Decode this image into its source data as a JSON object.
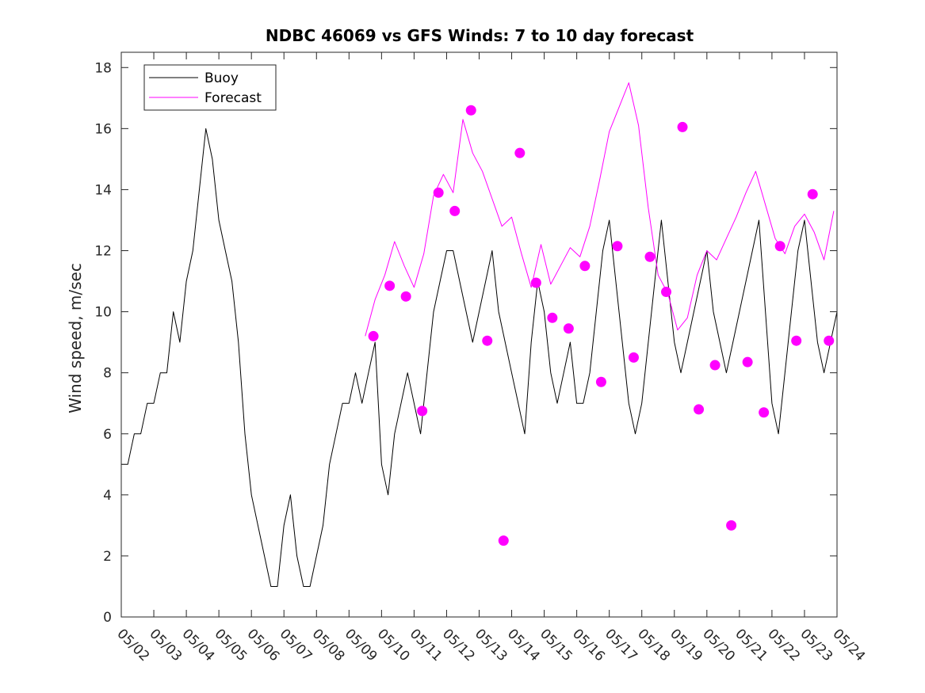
{
  "chart_data": {
    "type": "line",
    "title": "NDBC 46069 vs GFS Winds: 7 to 10 day forecast",
    "xlabel": "",
    "ylabel": "Wind speed, m/sec",
    "xlim": [
      0,
      22
    ],
    "ylim": [
      0,
      18.5
    ],
    "x_tick_labels": [
      "05/02",
      "05/03",
      "05/04",
      "05/05",
      "05/06",
      "05/07",
      "05/08",
      "05/09",
      "05/10",
      "05/11",
      "05/12",
      "05/13",
      "05/14",
      "05/15",
      "05/16",
      "05/17",
      "05/18",
      "05/19",
      "05/20",
      "05/21",
      "05/22",
      "05/23",
      "05/24"
    ],
    "y_ticks": [
      0,
      2,
      4,
      6,
      8,
      10,
      12,
      14,
      16,
      18
    ],
    "grid": false,
    "legend_position": "top-left",
    "colors": {
      "buoy": "#000000",
      "forecast": "#ff00ff",
      "axes": "#262626"
    },
    "series": [
      {
        "name": "Buoy",
        "style": "line",
        "color": "#000000",
        "x": [
          0,
          0.2,
          0.4,
          0.6,
          0.8,
          1.0,
          1.2,
          1.4,
          1.6,
          1.8,
          2.0,
          2.2,
          2.4,
          2.6,
          2.8,
          3.0,
          3.2,
          3.4,
          3.6,
          3.8,
          4.0,
          4.2,
          4.4,
          4.6,
          4.8,
          5.0,
          5.2,
          5.4,
          5.6,
          5.8,
          6.0,
          6.2,
          6.4,
          6.6,
          6.8,
          7.0,
          7.2,
          7.4,
          7.6,
          7.8,
          8.0,
          8.2,
          8.4,
          8.6,
          8.8,
          9.0,
          9.2,
          9.4,
          9.6,
          9.8,
          10.0,
          10.2,
          10.4,
          10.6,
          10.8,
          11.0,
          11.2,
          11.4,
          11.6,
          11.8,
          12.0,
          12.2,
          12.4,
          12.6,
          12.8,
          13.0,
          13.2,
          13.4,
          13.6,
          13.8,
          14.0,
          14.2,
          14.4,
          14.6,
          14.8,
          15.0,
          15.2,
          15.4,
          15.6,
          15.8,
          16.0,
          16.2,
          16.4,
          16.6,
          16.8,
          17.0,
          17.2,
          17.4,
          17.6,
          17.8,
          18.0,
          18.2,
          18.4,
          18.6,
          18.8,
          19.0,
          19.2,
          19.4,
          19.6,
          19.8,
          20.0,
          20.2,
          20.4,
          20.6,
          20.8,
          21.0,
          21.2,
          21.4,
          21.6,
          21.8,
          22.0
        ],
        "y": [
          5,
          5,
          6,
          6,
          7,
          7,
          8,
          8,
          10,
          9,
          11,
          12,
          14,
          16,
          15,
          13,
          12,
          11,
          9,
          6,
          4,
          3,
          2,
          1,
          1,
          3,
          4,
          2,
          1,
          1,
          2,
          3,
          5,
          6,
          7,
          7,
          8,
          7,
          8,
          9,
          5,
          4,
          6,
          7,
          8,
          7,
          6,
          8,
          10,
          11,
          12,
          12,
          11,
          10,
          9,
          10,
          11,
          12,
          10,
          9,
          8,
          7,
          6,
          9,
          11,
          10,
          8,
          7,
          8,
          9,
          7,
          7,
          8,
          10,
          12,
          13,
          11,
          9,
          7,
          6,
          7,
          9,
          11,
          13,
          11,
          9,
          8,
          9,
          10,
          11,
          12,
          10,
          9,
          8,
          9,
          10,
          11,
          12,
          13,
          10,
          7,
          6,
          8,
          10,
          12,
          13,
          11,
          9,
          8,
          9,
          10
        ]
      },
      {
        "name": "Forecast",
        "style": "line",
        "color": "#ff00ff",
        "x": [
          7.5,
          7.8,
          8.1,
          8.4,
          8.7,
          9.0,
          9.3,
          9.6,
          9.9,
          10.2,
          10.5,
          10.8,
          11.1,
          11.4,
          11.7,
          12.0,
          12.3,
          12.6,
          12.9,
          13.2,
          13.5,
          13.8,
          14.1,
          14.4,
          14.7,
          15.0,
          15.3,
          15.6,
          15.9,
          16.2,
          16.5,
          16.8,
          17.1,
          17.4,
          17.7,
          18.0,
          18.3,
          18.6,
          18.9,
          19.2,
          19.5,
          19.8,
          20.1,
          20.4,
          20.7,
          21.0,
          21.3,
          21.6,
          21.9
        ],
        "y": [
          9.2,
          10.4,
          11.2,
          12.3,
          11.5,
          10.8,
          11.9,
          13.8,
          14.5,
          13.9,
          16.3,
          15.2,
          14.6,
          13.7,
          12.8,
          13.1,
          11.9,
          10.8,
          12.2,
          10.9,
          11.5,
          12.1,
          11.8,
          12.8,
          14.3,
          15.9,
          16.7,
          17.5,
          16.1,
          13.4,
          11.2,
          10.6,
          9.4,
          9.8,
          11.2,
          12.0,
          11.7,
          12.4,
          13.1,
          13.9,
          14.6,
          13.5,
          12.4,
          11.9,
          12.8,
          13.2,
          12.6,
          11.7,
          13.3
        ]
      },
      {
        "name": "",
        "style": "markers",
        "color": "#ff00ff",
        "x": [
          7.75,
          8.25,
          8.75,
          9.25,
          9.75,
          10.25,
          10.75,
          11.25,
          11.75,
          12.25,
          12.75,
          13.25,
          13.75,
          14.25,
          14.75,
          15.25,
          15.75,
          16.25,
          16.75,
          17.25,
          17.75,
          18.25,
          18.75,
          19.25,
          19.75,
          20.25,
          20.75,
          21.25,
          21.75
        ],
        "y": [
          9.2,
          10.85,
          10.5,
          6.75,
          13.9,
          13.3,
          16.6,
          9.05,
          2.5,
          15.2,
          10.95,
          9.8,
          9.45,
          11.5,
          7.7,
          12.15,
          8.5,
          11.8,
          10.65,
          16.05,
          6.8,
          8.25,
          3.0,
          8.35,
          6.7,
          12.15,
          9.05,
          13.85,
          9.05
        ]
      }
    ]
  }
}
